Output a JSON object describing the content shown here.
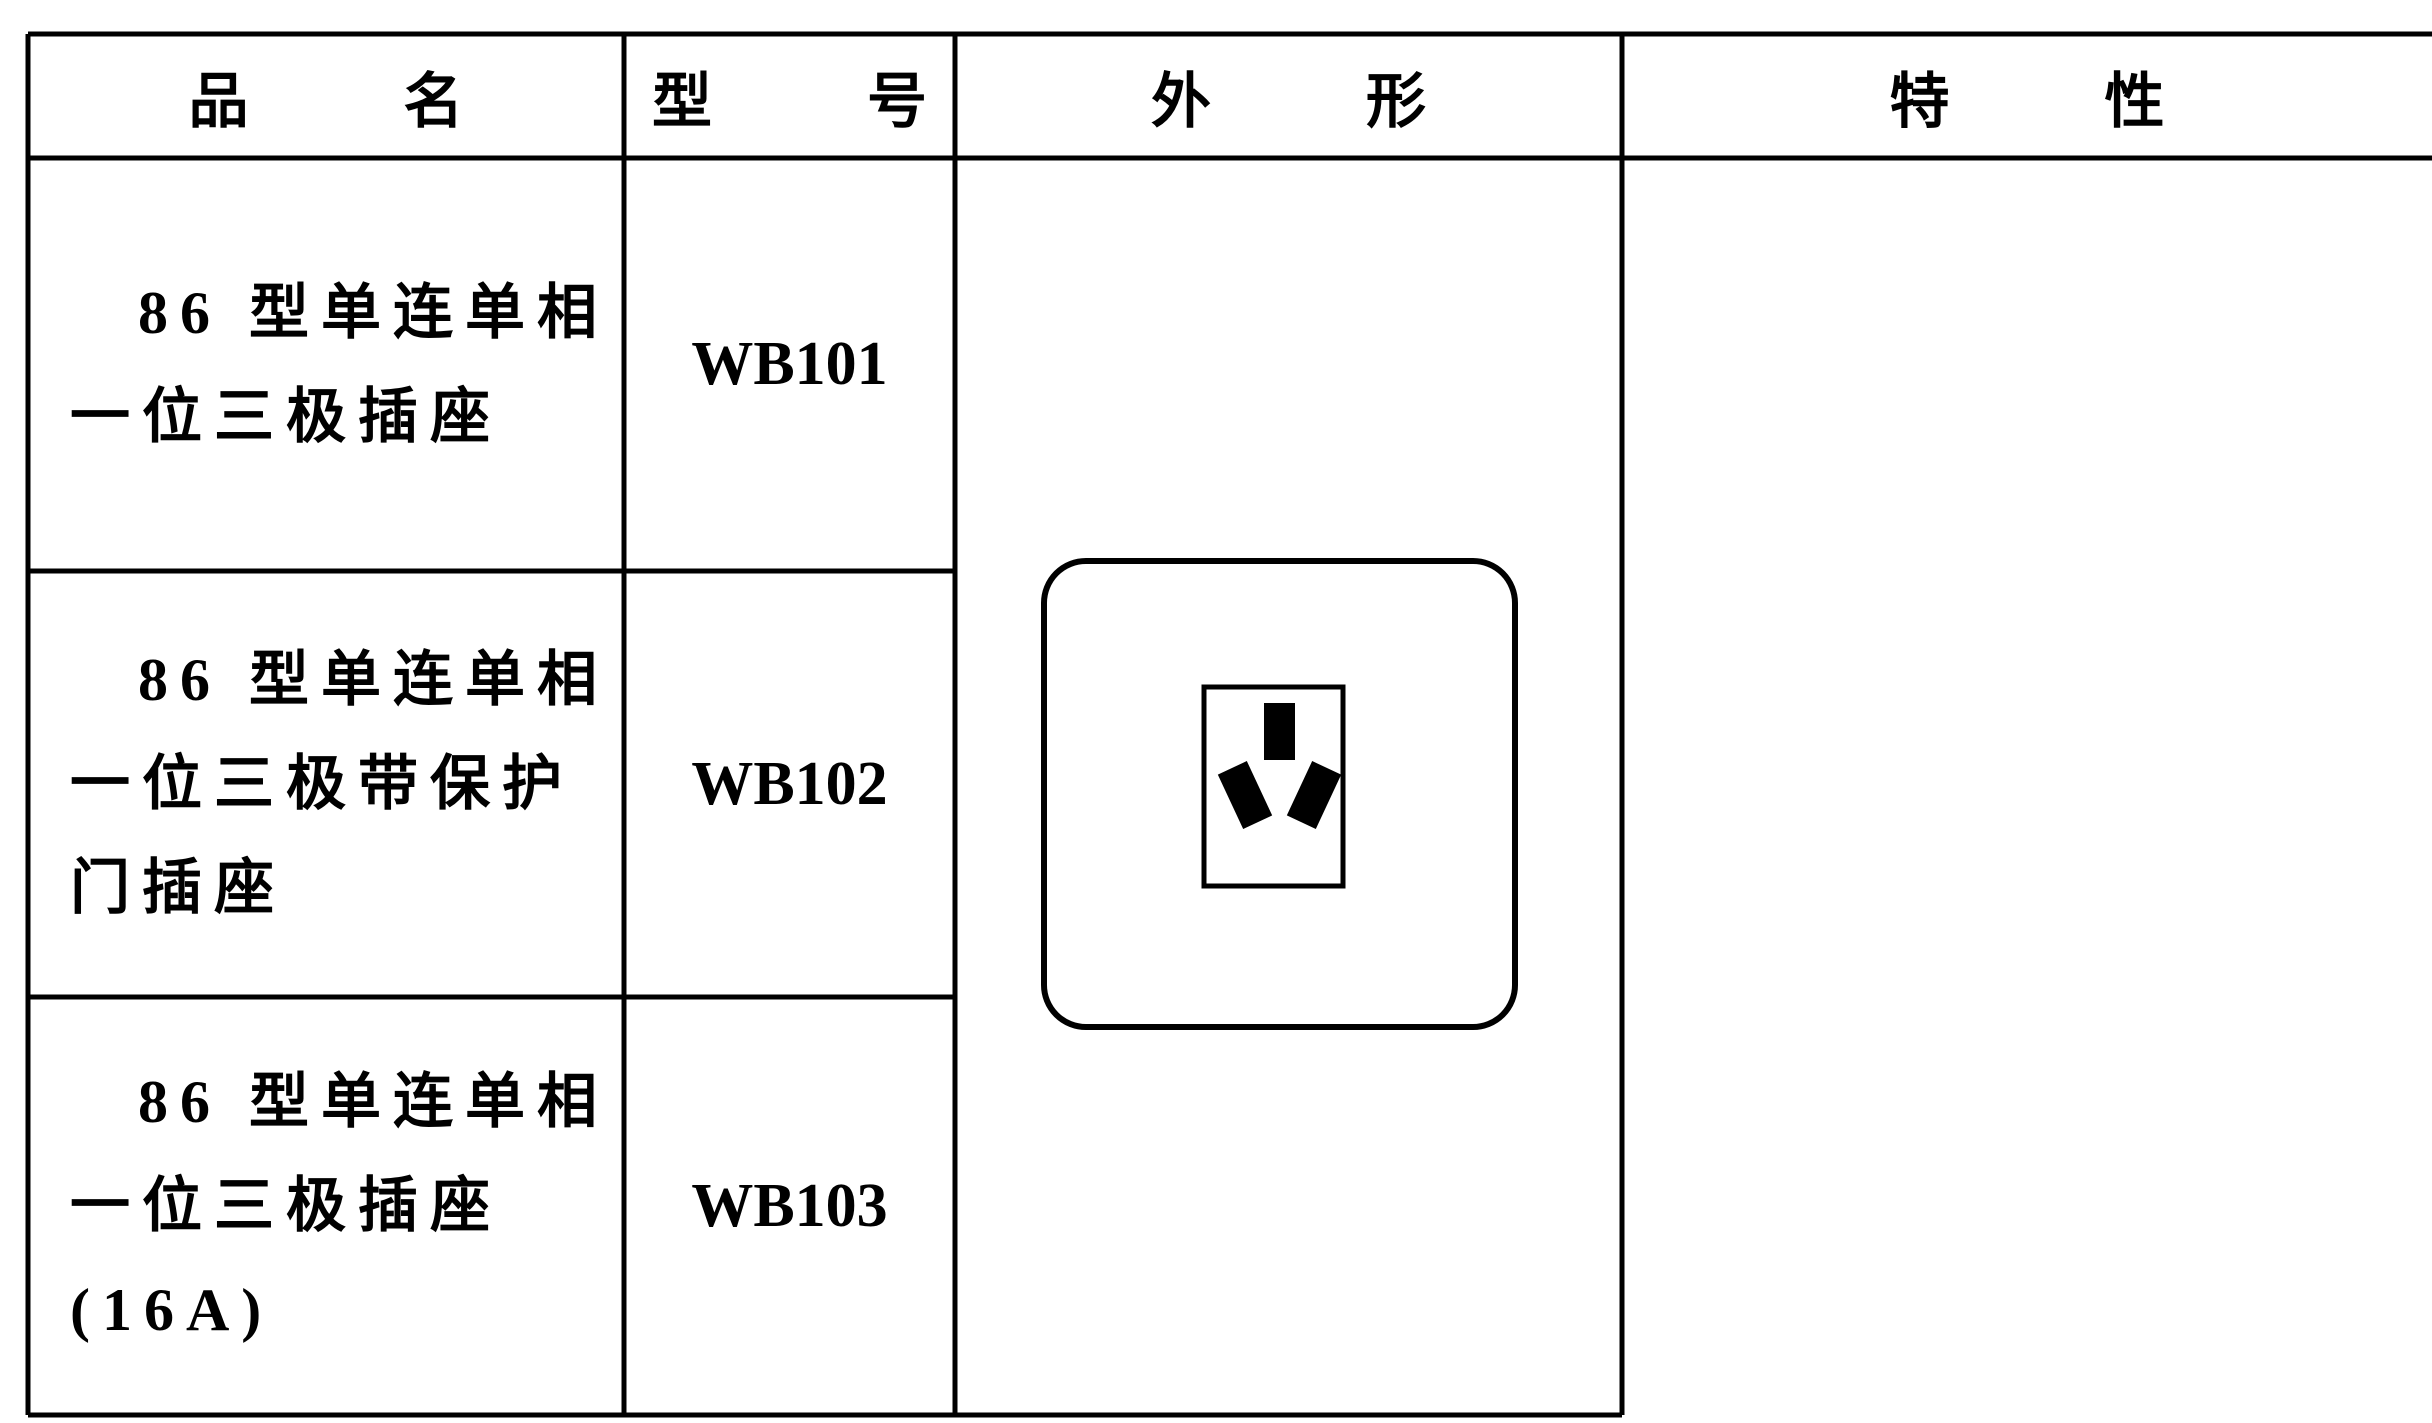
{
  "table": {
    "header": [
      "品 名",
      "型 号",
      "外 形",
      "特 性"
    ],
    "rows": [
      {
        "name_lines": [
          "86 型单连单相",
          "一位三极插座"
        ],
        "model": "WB101"
      },
      {
        "name_lines": [
          "86 型单连单相",
          "一位三极带保护",
          "门插座"
        ],
        "model": "WB102"
      },
      {
        "name_lines": [
          "86 型单连单相",
          "一位三极插座",
          "(16A)"
        ],
        "model": "WB103"
      }
    ]
  }
}
